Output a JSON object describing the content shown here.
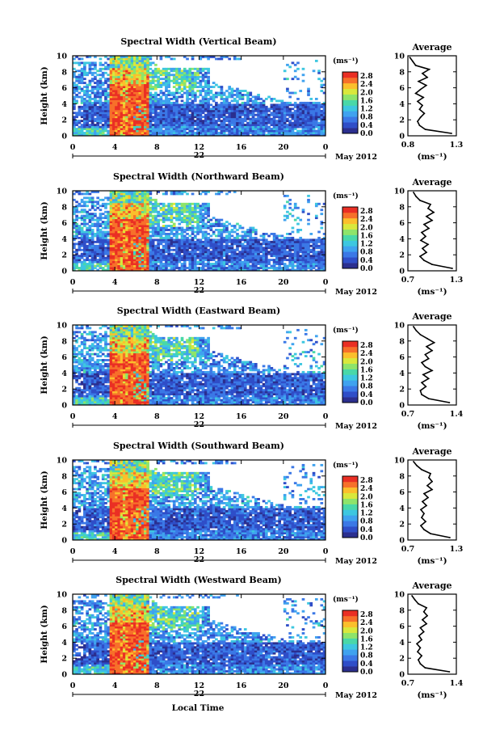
{
  "figure": {
    "xlabel": "Local Time",
    "date_label": "May 2012",
    "day_label": "22",
    "ylabel": "Height (km)",
    "units_label": "(ms⁻¹)",
    "x_ticks": [
      "0",
      "4",
      "8",
      "12",
      "16",
      "20",
      "0"
    ],
    "y_ticks": [
      "0",
      "2",
      "4",
      "6",
      "8",
      "10"
    ],
    "colorbar_ticks": [
      "0.0",
      "0.4",
      "0.8",
      "1.2",
      "1.6",
      "2.0",
      "2.4",
      "2.8"
    ],
    "colorbar_colors": [
      "#2b2f8f",
      "#2f4ec8",
      "#3b78e6",
      "#3fa2ef",
      "#3dc7e0",
      "#49d8a8",
      "#8ee46a",
      "#d9e83c",
      "#fbbf2c",
      "#f7702a",
      "#ea2f24"
    ]
  },
  "chart_data": [
    {
      "type": "heatmap",
      "title": "Spectral Width (Vertical Beam)",
      "ylabel": "Height (km)",
      "x_range": [
        0,
        24
      ],
      "y_range": [
        0,
        10
      ],
      "colorbar_range": [
        0.0,
        3.0
      ],
      "profile": {
        "title": "Average",
        "xlabel": "(ms⁻¹)",
        "x_ticks": [
          "0.8",
          "1.3"
        ],
        "x_range": [
          0.8,
          1.3
        ],
        "heights": [
          0.3,
          0.8,
          1.3,
          1.8,
          2.3,
          2.8,
          3.3,
          3.8,
          4.3,
          4.8,
          5.3,
          5.8,
          6.3,
          6.8,
          7.3,
          7.8,
          8.3,
          8.8,
          9.3,
          9.8
        ],
        "values": [
          1.25,
          0.98,
          0.92,
          0.9,
          0.93,
          0.97,
          0.92,
          0.95,
          0.9,
          0.96,
          0.88,
          0.93,
          0.99,
          0.91,
          1.0,
          0.95,
          1.02,
          0.88,
          0.85,
          0.82
        ]
      }
    },
    {
      "type": "heatmap",
      "title": "Spectral Width (Northward Beam)",
      "ylabel": "Height (km)",
      "x_range": [
        0,
        24
      ],
      "y_range": [
        0,
        10
      ],
      "colorbar_range": [
        0.0,
        3.0
      ],
      "profile": {
        "title": "Average",
        "xlabel": "(ms⁻¹)",
        "x_ticks": [
          "0.7",
          "1.3"
        ],
        "x_range": [
          0.7,
          1.3
        ],
        "heights": [
          0.3,
          0.8,
          1.3,
          1.8,
          2.3,
          2.8,
          3.3,
          3.8,
          4.3,
          4.8,
          5.3,
          5.8,
          6.3,
          6.8,
          7.3,
          7.8,
          8.3,
          8.8,
          9.3,
          9.8
        ],
        "values": [
          1.25,
          1.0,
          0.9,
          0.85,
          0.93,
          0.88,
          0.95,
          0.86,
          0.92,
          0.87,
          0.96,
          0.9,
          1.0,
          0.93,
          1.02,
          0.95,
          0.98,
          0.85,
          0.8,
          0.77
        ]
      }
    },
    {
      "type": "heatmap",
      "title": "Spectral Width (Eastward Beam)",
      "ylabel": "Height (km)",
      "x_range": [
        0,
        24
      ],
      "y_range": [
        0,
        10
      ],
      "colorbar_range": [
        0.0,
        3.0
      ],
      "profile": {
        "title": "Average",
        "xlabel": "(ms⁻¹)",
        "x_ticks": [
          "0.7",
          "1.4"
        ],
        "x_range": [
          0.7,
          1.4
        ],
        "heights": [
          0.3,
          0.8,
          1.3,
          1.8,
          2.3,
          2.8,
          3.3,
          3.8,
          4.3,
          4.8,
          5.3,
          5.8,
          6.3,
          6.8,
          7.3,
          7.8,
          8.3,
          8.8,
          9.3,
          9.8
        ],
        "values": [
          1.3,
          1.0,
          0.9,
          0.88,
          0.96,
          0.9,
          1.0,
          0.92,
          1.05,
          0.95,
          0.9,
          1.0,
          0.95,
          1.05,
          0.97,
          1.08,
          0.98,
          0.88,
          0.82,
          0.78
        ]
      }
    },
    {
      "type": "heatmap",
      "title": "Spectral Width (Southward Beam)",
      "ylabel": "Height (km)",
      "x_range": [
        0,
        24
      ],
      "y_range": [
        0,
        10
      ],
      "colorbar_range": [
        0.0,
        3.0
      ],
      "profile": {
        "title": "Average",
        "xlabel": "(ms⁻¹)",
        "x_ticks": [
          "0.7",
          "1.3"
        ],
        "x_range": [
          0.7,
          1.3
        ],
        "heights": [
          0.3,
          0.8,
          1.3,
          1.8,
          2.3,
          2.8,
          3.3,
          3.8,
          4.3,
          4.8,
          5.3,
          5.8,
          6.3,
          6.8,
          7.3,
          7.8,
          8.3,
          8.8,
          9.3,
          9.8
        ],
        "values": [
          1.22,
          0.98,
          0.9,
          0.86,
          0.92,
          0.87,
          0.9,
          0.86,
          0.93,
          0.88,
          0.95,
          0.9,
          1.0,
          0.94,
          1.0,
          0.96,
          0.98,
          0.87,
          0.81,
          0.77
        ]
      }
    },
    {
      "type": "heatmap",
      "title": "Spectral Width (Westward Beam)",
      "ylabel": "Height (km)",
      "x_range": [
        0,
        24
      ],
      "y_range": [
        0,
        10
      ],
      "colorbar_range": [
        0.0,
        3.0
      ],
      "profile": {
        "title": "Average",
        "xlabel": "(ms⁻¹)",
        "x_ticks": [
          "0.7",
          "1.4"
        ],
        "x_range": [
          0.7,
          1.4
        ],
        "heights": [
          0.3,
          0.8,
          1.3,
          1.8,
          2.3,
          2.8,
          3.3,
          3.8,
          4.3,
          4.8,
          5.3,
          5.8,
          6.3,
          6.8,
          7.3,
          7.8,
          8.3,
          8.8,
          9.3,
          9.8
        ],
        "values": [
          1.3,
          0.95,
          0.88,
          0.85,
          0.9,
          0.84,
          0.88,
          0.83,
          0.9,
          0.86,
          0.93,
          0.88,
          0.97,
          0.91,
          0.98,
          0.93,
          0.97,
          0.85,
          0.8,
          0.76
        ]
      }
    }
  ]
}
